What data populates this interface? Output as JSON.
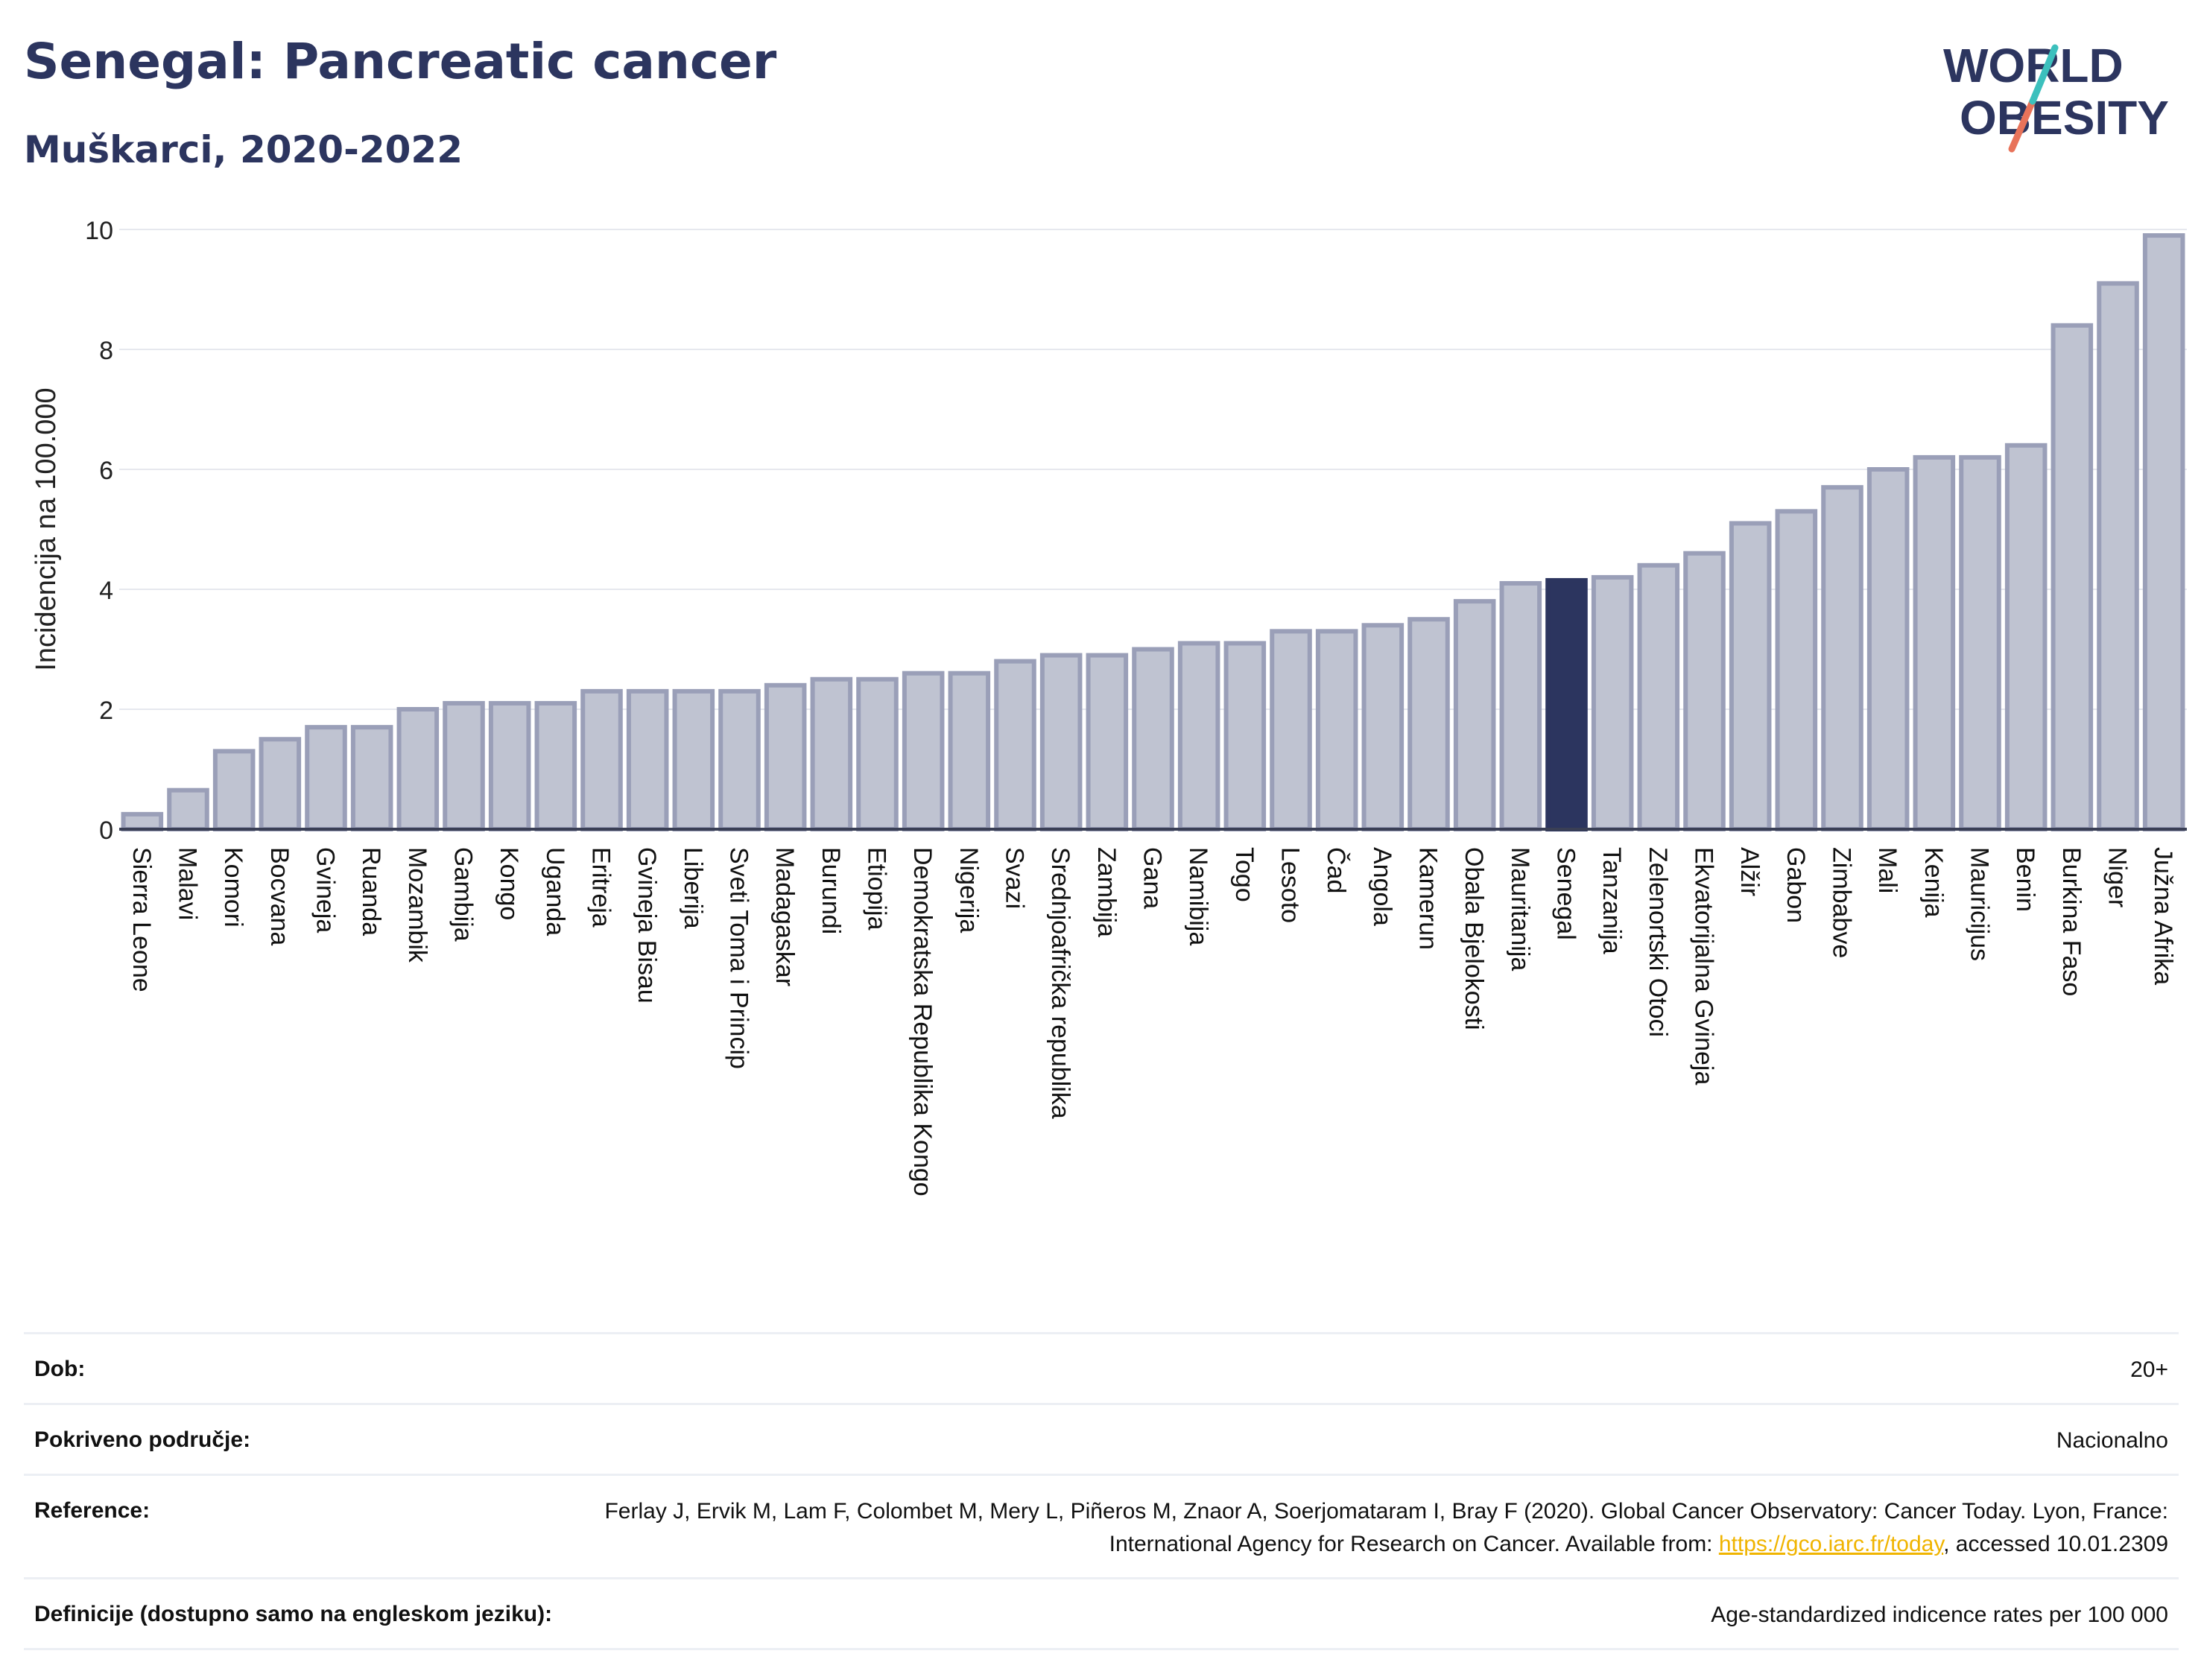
{
  "header": {
    "title": "Senegal: Pancreatic cancer",
    "subtitle": "Muškarci, 2020-2022"
  },
  "logo": {
    "line1": "WORLD",
    "line2": "OBESITY"
  },
  "colors": {
    "bar": "#bfc3d1",
    "bar_border": "#9a9fb8",
    "highlight": "#2c355f",
    "title": "#2c355f",
    "link": "#f0b400"
  },
  "chart_data": {
    "type": "bar",
    "ylabel": "Incidencija na 100.000",
    "ylim": [
      0,
      10
    ],
    "yticks": [
      0,
      2,
      4,
      6,
      8,
      10
    ],
    "grid": true,
    "highlight": "Senegal",
    "categories": [
      "Sierra Leone",
      "Malavi",
      "Komori",
      "Bocvana",
      "Gvineja",
      "Ruanda",
      "Mozambik",
      "Gambija",
      "Kongo",
      "Uganda",
      "Eritreja",
      "Gvineja Bisau",
      "Liberija",
      "Sveti Toma i Princip",
      "Madagaskar",
      "Burundi",
      "Etiopija",
      "Demokratska Republika Kongo",
      "Nigerija",
      "Svazi",
      "Srednjoafrička republika",
      "Zambija",
      "Gana",
      "Namibija",
      "Togo",
      "Lesoto",
      "Čad",
      "Angola",
      "Kamerun",
      "Obala Bjelokosti",
      "Mauritanija",
      "Senegal",
      "Tanzanija",
      "Zelenortski Otoci",
      "Ekvatorijalna Gvineja",
      "Alžir",
      "Gabon",
      "Zimbabve",
      "Mali",
      "Kenija",
      "Mauricijus",
      "Benin",
      "Burkina Faso",
      "Niger",
      "Južna Afrika"
    ],
    "values": [
      0.25,
      0.65,
      1.3,
      1.5,
      1.7,
      1.7,
      2.0,
      2.1,
      2.1,
      2.1,
      2.3,
      2.3,
      2.3,
      2.3,
      2.4,
      2.5,
      2.5,
      2.6,
      2.6,
      2.8,
      2.9,
      2.9,
      3.0,
      3.1,
      3.1,
      3.3,
      3.3,
      3.4,
      3.5,
      3.8,
      4.1,
      4.15,
      4.2,
      4.4,
      4.6,
      5.1,
      5.3,
      5.7,
      6.0,
      6.2,
      6.2,
      6.4,
      8.4,
      9.1,
      9.9
    ]
  },
  "info": {
    "rows": [
      {
        "label": "Dob:",
        "value": "20+"
      },
      {
        "label": "Pokriveno područje:",
        "value": "Nacionalno"
      },
      {
        "label": "Reference:",
        "value_pre": "Ferlay J, Ervik M, Lam F, Colombet M, Mery L, Piñeros M, Znaor A, Soerjomataram I, Bray F (2020). Global Cancer Observatory: Cancer Today. Lyon, France: International Agency for Research on Cancer. Available from: ",
        "link": "https://gco.iarc.fr/today",
        "value_post": ", accessed 10.01.2309"
      },
      {
        "label": "Definicije (dostupno samo na engleskom jeziku):",
        "value": "Age-standardized indicence rates per 100 000"
      }
    ]
  }
}
